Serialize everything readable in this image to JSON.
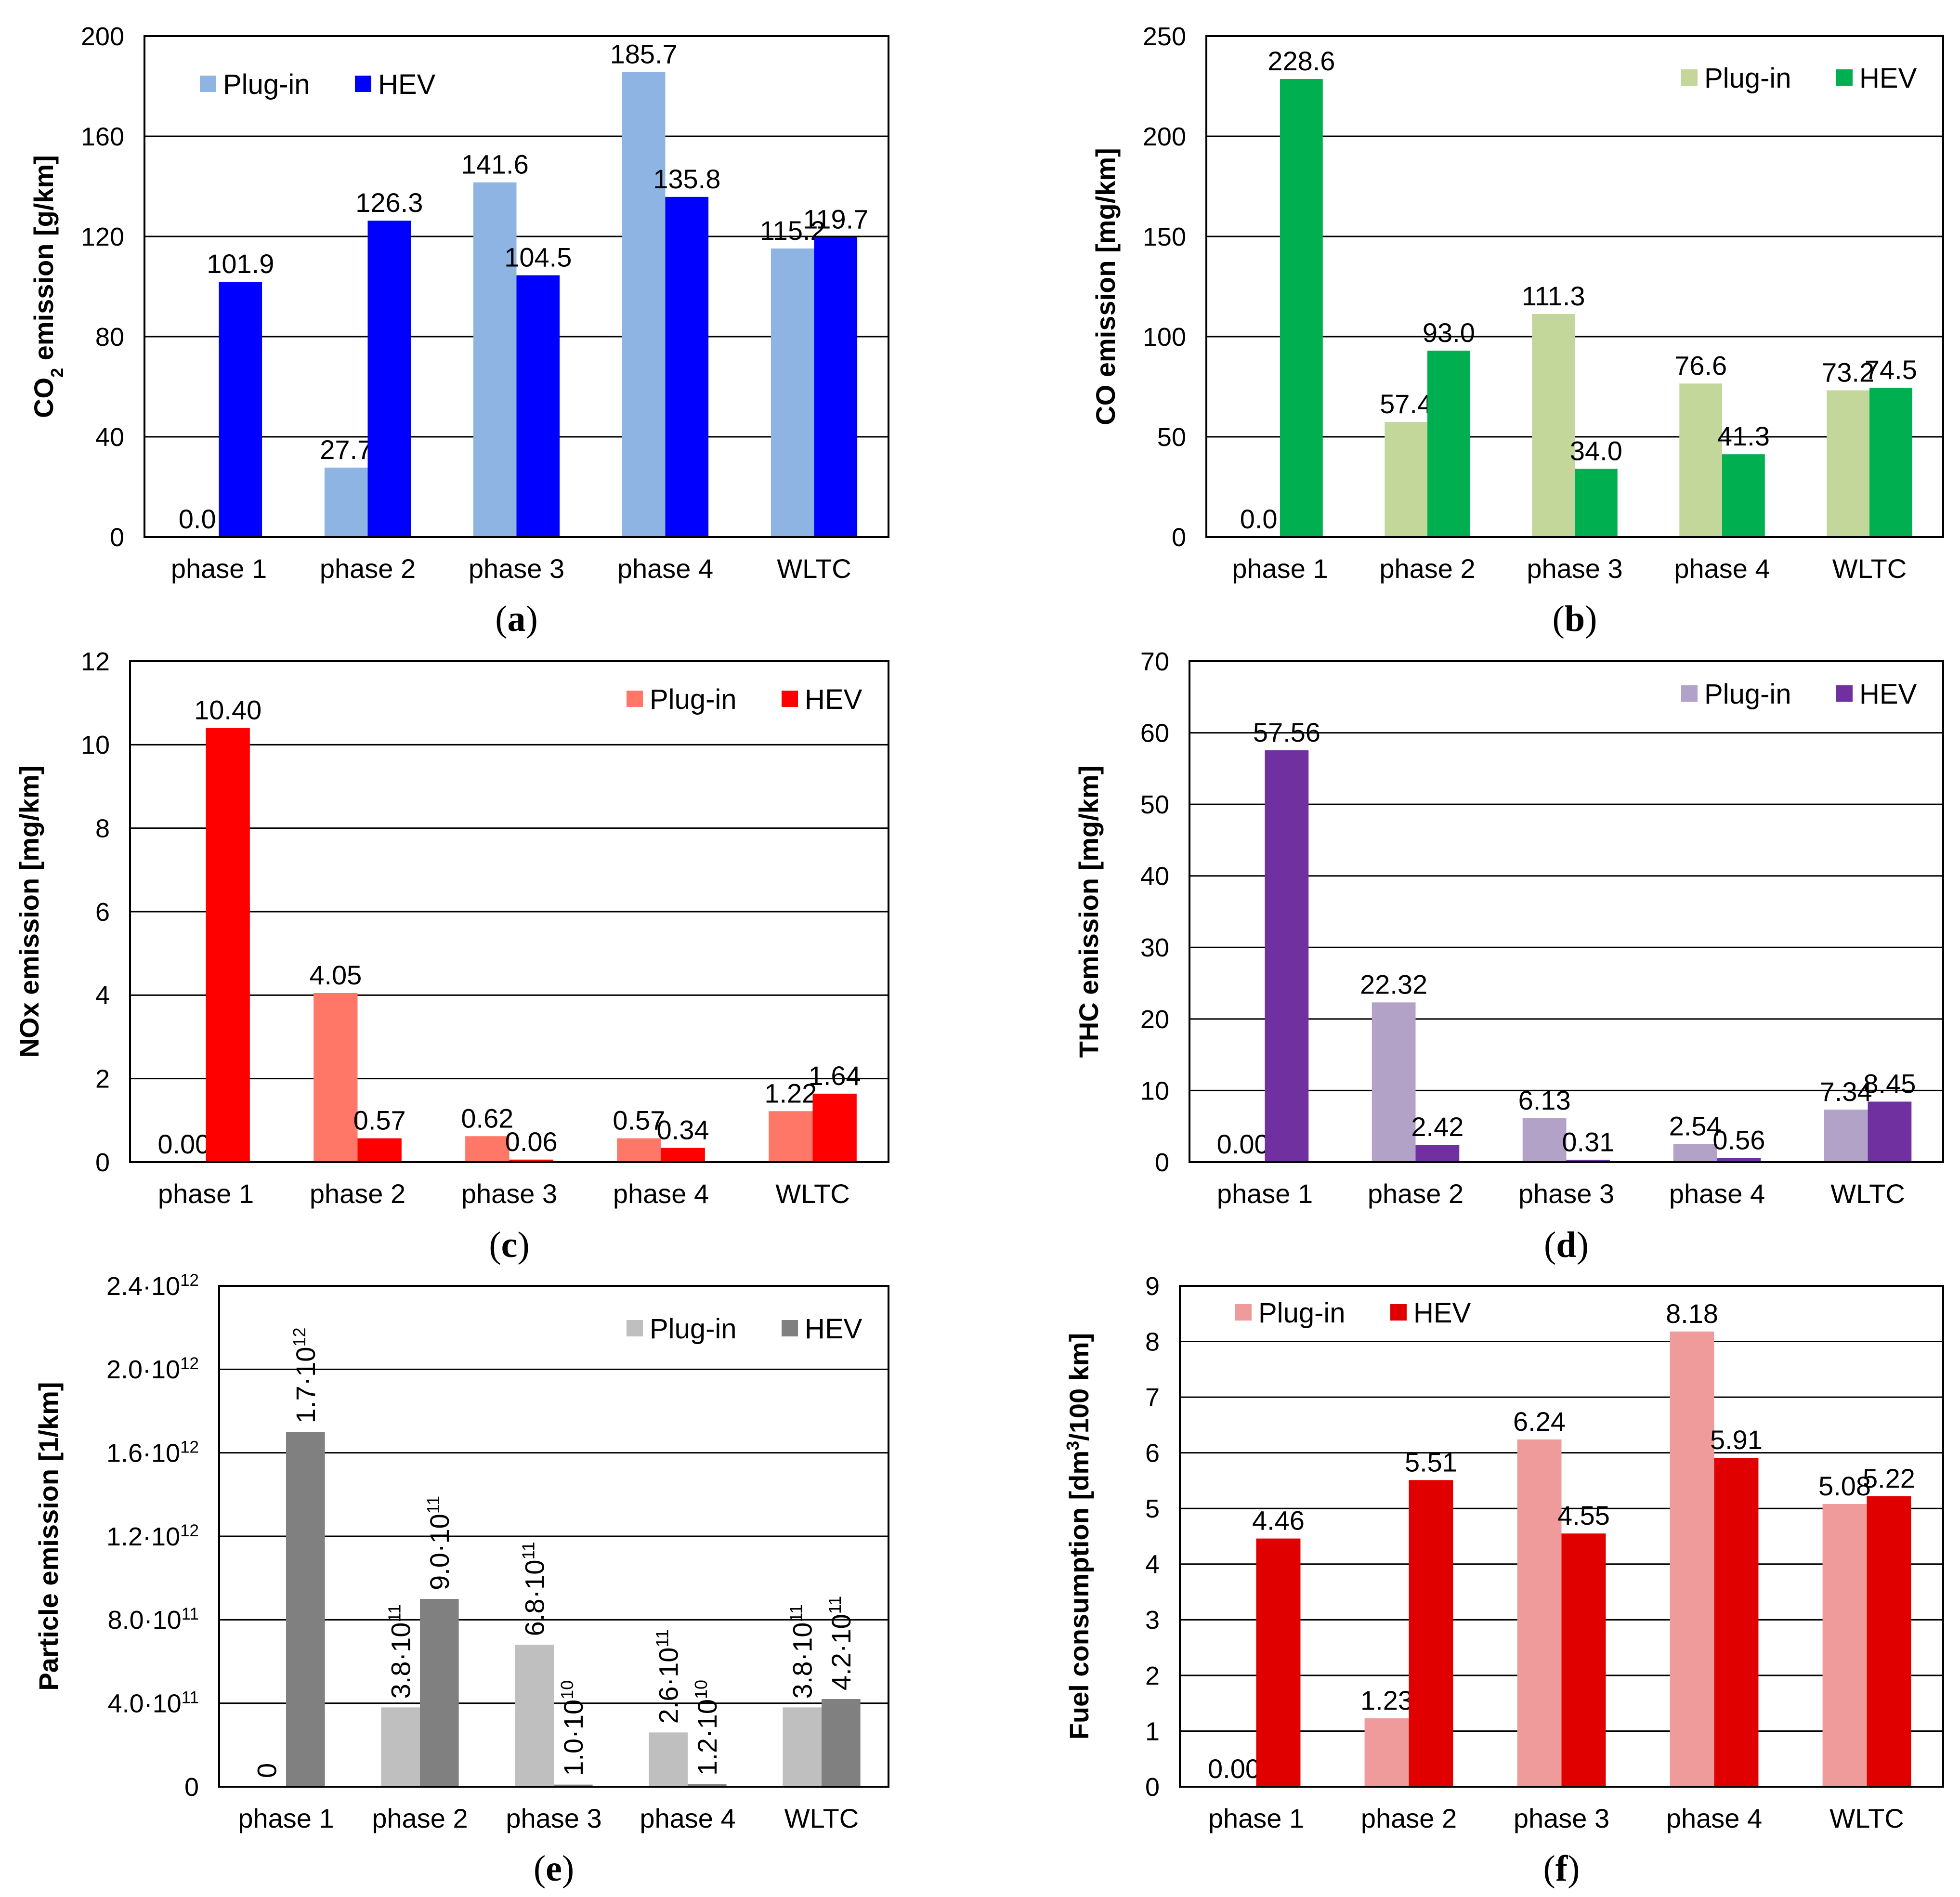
{
  "categories": [
    "phase 1",
    "phase 2",
    "phase 3",
    "phase 4",
    "WLTC"
  ],
  "chart_data": [
    {
      "id": "a",
      "type": "bar",
      "caption_letter": "a",
      "ylabel_parts": [
        {
          "t": "CO"
        },
        {
          "t": "2",
          "sub": true
        },
        {
          "t": " emission [g/km]"
        }
      ],
      "ylim": [
        0,
        200
      ],
      "ticks": [
        {
          "v": 0,
          "parts": [
            {
              "t": "0"
            }
          ]
        },
        {
          "v": 40,
          "parts": [
            {
              "t": "40"
            }
          ]
        },
        {
          "v": 80,
          "parts": [
            {
              "t": "80"
            }
          ]
        },
        {
          "v": 120,
          "parts": [
            {
              "t": "120"
            }
          ]
        },
        {
          "v": 160,
          "parts": [
            {
              "t": "160"
            }
          ]
        },
        {
          "v": 200,
          "parts": [
            {
              "t": "200"
            }
          ]
        }
      ],
      "grid": true,
      "legend_position": "top-left",
      "series": [
        {
          "name": "Plug-in",
          "color": "#8db4e2",
          "values": [
            0,
            27.7,
            141.6,
            185.7,
            115.2
          ],
          "labels": [
            [
              {
                "t": "0.0"
              }
            ],
            [
              {
                "t": "27.7"
              }
            ],
            [
              {
                "t": "141.6"
              }
            ],
            [
              {
                "t": "185.7"
              }
            ],
            [
              {
                "t": "115.2"
              }
            ]
          ]
        },
        {
          "name": "HEV",
          "color": "#0000ff",
          "values": [
            101.9,
            126.3,
            104.5,
            135.8,
            119.7
          ],
          "labels": [
            [
              {
                "t": "101.9"
              }
            ],
            [
              {
                "t": "126.3"
              }
            ],
            [
              {
                "t": "104.5"
              }
            ],
            [
              {
                "t": "135.8"
              }
            ],
            [
              {
                "t": "119.7"
              }
            ]
          ]
        }
      ]
    },
    {
      "id": "b",
      "type": "bar",
      "caption_letter": "b",
      "ylabel_parts": [
        {
          "t": "CO emission [mg/km]"
        }
      ],
      "ylim": [
        0,
        250
      ],
      "ticks": [
        {
          "v": 0,
          "parts": [
            {
              "t": "0"
            }
          ]
        },
        {
          "v": 50,
          "parts": [
            {
              "t": "50"
            }
          ]
        },
        {
          "v": 100,
          "parts": [
            {
              "t": "100"
            }
          ]
        },
        {
          "v": 150,
          "parts": [
            {
              "t": "150"
            }
          ]
        },
        {
          "v": 200,
          "parts": [
            {
              "t": "200"
            }
          ]
        },
        {
          "v": 250,
          "parts": [
            {
              "t": "250"
            }
          ]
        }
      ],
      "grid": true,
      "legend_position": "top-right",
      "series": [
        {
          "name": "Plug-in",
          "color": "#c4d79b",
          "values": [
            0,
            57.4,
            111.3,
            76.6,
            73.2
          ],
          "labels": [
            [
              {
                "t": "0.0"
              }
            ],
            [
              {
                "t": "57.4"
              }
            ],
            [
              {
                "t": "111.3"
              }
            ],
            [
              {
                "t": "76.6"
              }
            ],
            [
              {
                "t": "73.2"
              }
            ]
          ]
        },
        {
          "name": "HEV",
          "color": "#00b050",
          "values": [
            228.6,
            93.0,
            34.0,
            41.3,
            74.5
          ],
          "labels": [
            [
              {
                "t": "228.6"
              }
            ],
            [
              {
                "t": "93.0"
              }
            ],
            [
              {
                "t": "34.0"
              }
            ],
            [
              {
                "t": "41.3"
              }
            ],
            [
              {
                "t": "74.5"
              }
            ]
          ]
        }
      ]
    },
    {
      "id": "c",
      "type": "bar",
      "caption_letter": "c",
      "ylabel_parts": [
        {
          "t": "NOx emission [mg/km]"
        }
      ],
      "ylim": [
        0,
        12
      ],
      "ticks": [
        {
          "v": 0,
          "parts": [
            {
              "t": "0"
            }
          ]
        },
        {
          "v": 2,
          "parts": [
            {
              "t": "2"
            }
          ]
        },
        {
          "v": 4,
          "parts": [
            {
              "t": "4"
            }
          ]
        },
        {
          "v": 6,
          "parts": [
            {
              "t": "6"
            }
          ]
        },
        {
          "v": 8,
          "parts": [
            {
              "t": "8"
            }
          ]
        },
        {
          "v": 10,
          "parts": [
            {
              "t": "10"
            }
          ]
        },
        {
          "v": 12,
          "parts": [
            {
              "t": "12"
            }
          ]
        }
      ],
      "grid": true,
      "legend_position": "top-right",
      "series": [
        {
          "name": "Plug-in",
          "color": "#ff7766",
          "values": [
            0,
            4.05,
            0.62,
            0.57,
            1.22
          ],
          "labels": [
            [
              {
                "t": "0.00"
              }
            ],
            [
              {
                "t": "4.05"
              }
            ],
            [
              {
                "t": "0.62"
              }
            ],
            [
              {
                "t": "0.57"
              }
            ],
            [
              {
                "t": "1.22"
              }
            ]
          ]
        },
        {
          "name": "HEV",
          "color": "#ff0000",
          "values": [
            10.4,
            0.57,
            0.06,
            0.34,
            1.64
          ],
          "labels": [
            [
              {
                "t": "10.40"
              }
            ],
            [
              {
                "t": "0.57"
              }
            ],
            [
              {
                "t": "0.06"
              }
            ],
            [
              {
                "t": "0.34"
              }
            ],
            [
              {
                "t": "1.64"
              }
            ]
          ]
        }
      ]
    },
    {
      "id": "d",
      "type": "bar",
      "caption_letter": "d",
      "ylabel_parts": [
        {
          "t": "THC emission [mg/km]"
        }
      ],
      "ylim": [
        0,
        70
      ],
      "ticks": [
        {
          "v": 0,
          "parts": [
            {
              "t": "0"
            }
          ]
        },
        {
          "v": 10,
          "parts": [
            {
              "t": "10"
            }
          ]
        },
        {
          "v": 20,
          "parts": [
            {
              "t": "20"
            }
          ]
        },
        {
          "v": 30,
          "parts": [
            {
              "t": "30"
            }
          ]
        },
        {
          "v": 40,
          "parts": [
            {
              "t": "40"
            }
          ]
        },
        {
          "v": 50,
          "parts": [
            {
              "t": "50"
            }
          ]
        },
        {
          "v": 60,
          "parts": [
            {
              "t": "60"
            }
          ]
        },
        {
          "v": 70,
          "parts": [
            {
              "t": "70"
            }
          ]
        }
      ],
      "grid": true,
      "legend_position": "top-right",
      "series": [
        {
          "name": "Plug-in",
          "color": "#b3a2c7",
          "values": [
            0,
            22.32,
            6.13,
            2.54,
            7.34
          ],
          "labels": [
            [
              {
                "t": "0.00"
              }
            ],
            [
              {
                "t": "22.32"
              }
            ],
            [
              {
                "t": "6.13"
              }
            ],
            [
              {
                "t": "2.54"
              }
            ],
            [
              {
                "t": "7.34"
              }
            ]
          ]
        },
        {
          "name": "HEV",
          "color": "#7030a0",
          "values": [
            57.56,
            2.42,
            0.31,
            0.56,
            8.45
          ],
          "labels": [
            [
              {
                "t": "57.56"
              }
            ],
            [
              {
                "t": "2.42"
              }
            ],
            [
              {
                "t": "0.31"
              }
            ],
            [
              {
                "t": "0.56"
              }
            ],
            [
              {
                "t": "8.45"
              }
            ]
          ]
        }
      ]
    },
    {
      "id": "e",
      "type": "bar",
      "caption_letter": "e",
      "ylabel_parts": [
        {
          "t": "Particle emission [1/km]"
        }
      ],
      "ylim": [
        0,
        2400000000000.0
      ],
      "ticks": [
        {
          "v": 0,
          "parts": [
            {
              "t": "0"
            }
          ]
        },
        {
          "v": 400000000000.0,
          "parts": [
            {
              "t": "4.0·10"
            },
            {
              "t": "11",
              "sup": true
            }
          ]
        },
        {
          "v": 800000000000.0,
          "parts": [
            {
              "t": "8.0·10"
            },
            {
              "t": "11",
              "sup": true
            }
          ]
        },
        {
          "v": 1200000000000.0,
          "parts": [
            {
              "t": "1.2·10"
            },
            {
              "t": "12",
              "sup": true
            }
          ]
        },
        {
          "v": 1600000000000.0,
          "parts": [
            {
              "t": "1.6·10"
            },
            {
              "t": "12",
              "sup": true
            }
          ]
        },
        {
          "v": 2000000000000.0,
          "parts": [
            {
              "t": "2.0·10"
            },
            {
              "t": "12",
              "sup": true
            }
          ]
        },
        {
          "v": 2400000000000.0,
          "parts": [
            {
              "t": "2.4·10"
            },
            {
              "t": "12",
              "sup": true
            }
          ]
        }
      ],
      "grid": true,
      "legend_position": "top-right",
      "rotated_labels": true,
      "series": [
        {
          "name": "Plug-in",
          "color": "#bfbfbf",
          "values": [
            0,
            380000000000.0,
            680000000000.0,
            260000000000.0,
            380000000000.0
          ],
          "labels": [
            [
              {
                "t": "0"
              }
            ],
            [
              {
                "t": "3.8·10"
              },
              {
                "t": "11",
                "sup": true
              }
            ],
            [
              {
                "t": "6.8·10"
              },
              {
                "t": "11",
                "sup": true
              }
            ],
            [
              {
                "t": "2.6·10"
              },
              {
                "t": "11",
                "sup": true
              }
            ],
            [
              {
                "t": "3.8·10"
              },
              {
                "t": "11",
                "sup": true
              }
            ]
          ]
        },
        {
          "name": "HEV",
          "color": "#808080",
          "values": [
            1700000000000.0,
            900000000000.0,
            10000000000.0,
            12000000000.0,
            420000000000.0
          ],
          "labels": [
            [
              {
                "t": "1.7·10"
              },
              {
                "t": "12",
                "sup": true
              }
            ],
            [
              {
                "t": "9.0·10"
              },
              {
                "t": "11",
                "sup": true
              }
            ],
            [
              {
                "t": "1.0·10"
              },
              {
                "t": "10",
                "sup": true
              }
            ],
            [
              {
                "t": "1.2·10"
              },
              {
                "t": "10",
                "sup": true
              }
            ],
            [
              {
                "t": "4.2·10"
              },
              {
                "t": "11",
                "sup": true
              }
            ]
          ]
        }
      ]
    },
    {
      "id": "f",
      "type": "bar",
      "caption_letter": "f",
      "ylabel_parts": [
        {
          "t": "Fuel consumption [dm"
        },
        {
          "t": "3",
          "sup": true
        },
        {
          "t": "/100 km]"
        }
      ],
      "ylim": [
        0,
        9
      ],
      "ticks": [
        {
          "v": 0,
          "parts": [
            {
              "t": "0"
            }
          ]
        },
        {
          "v": 1,
          "parts": [
            {
              "t": "1"
            }
          ]
        },
        {
          "v": 2,
          "parts": [
            {
              "t": "2"
            }
          ]
        },
        {
          "v": 3,
          "parts": [
            {
              "t": "3"
            }
          ]
        },
        {
          "v": 4,
          "parts": [
            {
              "t": "4"
            }
          ]
        },
        {
          "v": 5,
          "parts": [
            {
              "t": "5"
            }
          ]
        },
        {
          "v": 6,
          "parts": [
            {
              "t": "6"
            }
          ]
        },
        {
          "v": 7,
          "parts": [
            {
              "t": "7"
            }
          ]
        },
        {
          "v": 8,
          "parts": [
            {
              "t": "8"
            }
          ]
        },
        {
          "v": 9,
          "parts": [
            {
              "t": "9"
            }
          ]
        }
      ],
      "grid": true,
      "legend_position": "top-left",
      "series": [
        {
          "name": "Plug-in",
          "color": "#f09b9b",
          "values": [
            0,
            1.23,
            6.24,
            8.18,
            5.08
          ],
          "labels": [
            [
              {
                "t": "0.00"
              }
            ],
            [
              {
                "t": "1.23"
              }
            ],
            [
              {
                "t": "6.24"
              }
            ],
            [
              {
                "t": "8.18"
              }
            ],
            [
              {
                "t": "5.08"
              }
            ]
          ]
        },
        {
          "name": "HEV",
          "color": "#e00000",
          "values": [
            4.46,
            5.51,
            4.55,
            5.91,
            5.22
          ],
          "labels": [
            [
              {
                "t": "4.46"
              }
            ],
            [
              {
                "t": "5.51"
              }
            ],
            [
              {
                "t": "4.55"
              }
            ],
            [
              {
                "t": "5.91"
              }
            ],
            [
              {
                "t": "5.22"
              }
            ]
          ]
        }
      ]
    }
  ]
}
